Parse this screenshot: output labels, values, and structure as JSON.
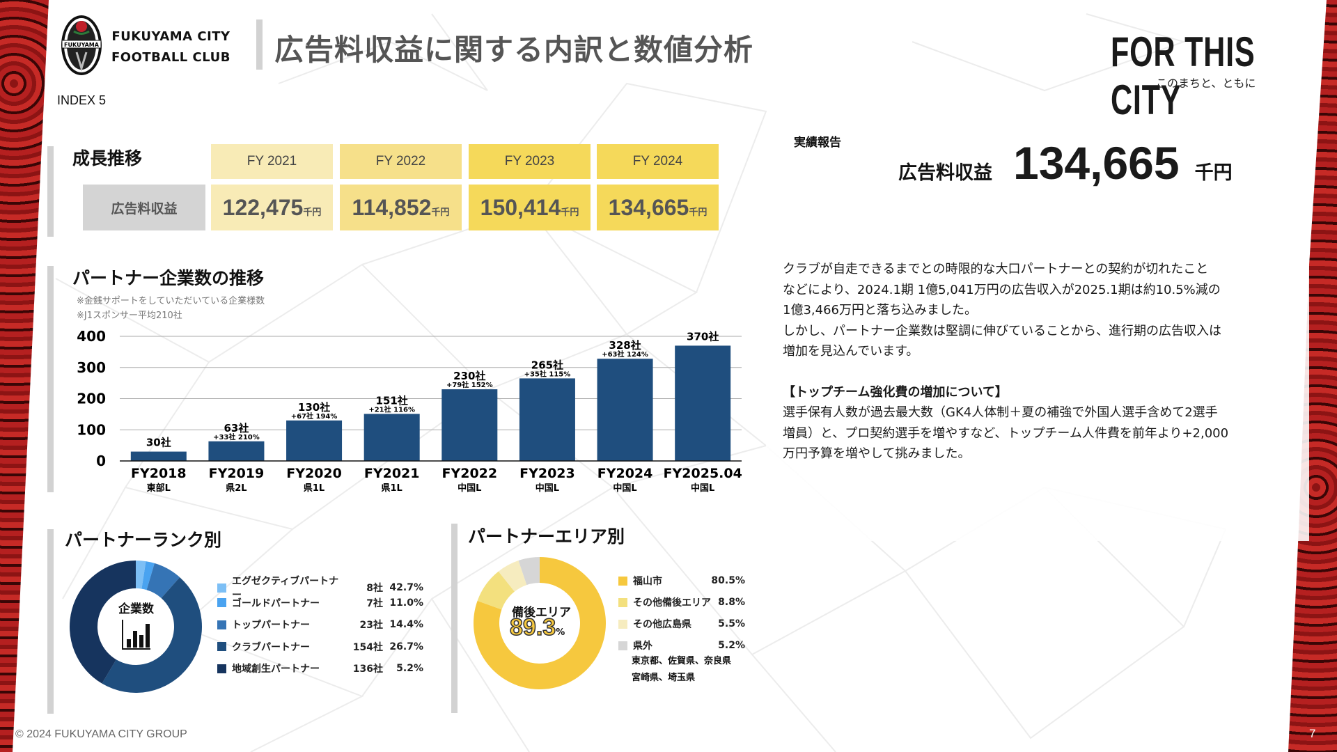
{
  "header": {
    "club_name_line1": "FUKUYAMA CITY",
    "club_name_line2": "FOOTBALL CLUB",
    "logo_banner": "FUKUYAMA",
    "index_label": "INDEX 5",
    "page_title": "広告料収益に関する内訳と数値分析",
    "tagline": "FOR THIS CITY",
    "tagline_sub": "このまちと、ともに"
  },
  "growth": {
    "label": "成長推移",
    "row_header": "広告料収益",
    "unit": "千円",
    "years": [
      "FY 2021",
      "FY 2022",
      "FY 2023",
      "FY 2024"
    ],
    "values": [
      "122,475",
      "114,852",
      "150,414",
      "134,665"
    ],
    "colors": [
      "#f8ebb6",
      "#f6e08a",
      "#f5d95a",
      "#f5d95a"
    ]
  },
  "report": {
    "label": "実績報告",
    "metric_label": "広告料収益",
    "metric_value": "134,665",
    "metric_unit": "千円"
  },
  "commentary": {
    "para1": [
      "クラブが自走できるまでとの時限的な大口パートナーとの契約が切れたこと",
      "などにより、2024.1期 1億5,041万円の広告収入が2025.1期は約10.5%減の",
      "1億3,466万円と落ち込みました。",
      "しかし、パートナー企業数は堅調に伸びていることから、進行期の広告収入は",
      "増加を見込んでいます。"
    ],
    "heading2": "【トップチーム強化費の増加について】",
    "para2": [
      "選手保有人数が過去最大数（GK4人体制＋夏の補強で外国人選手含めて2選手",
      "増員）と、プロ契約選手を増やすなど、トップチーム人件費を前年より+2,000",
      "万円予算を増やして挑みました。"
    ]
  },
  "footer": {
    "copyright": "© 2024 FUKUYAMA CITY GROUP",
    "page_number": "7"
  },
  "chart_data": [
    {
      "type": "bar",
      "title": "パートナー企業数の推移",
      "notes": [
        "※金銭サポートをしていただいている企業様数",
        "※J1スポンサー平均210社"
      ],
      "categories": [
        "FY2018",
        "FY2019",
        "FY2020",
        "FY2021",
        "FY2022",
        "FY2023",
        "FY2024",
        "FY2025.04"
      ],
      "category_sublabels": [
        "東部L",
        "県2L",
        "県1L",
        "県1L",
        "中国L",
        "中国L",
        "中国L",
        "中国L"
      ],
      "values": [
        30,
        63,
        130,
        151,
        230,
        265,
        328,
        370
      ],
      "value_labels": [
        "30社",
        "63社",
        "130社",
        "151社",
        "230社",
        "265社",
        "328社",
        "370社"
      ],
      "growth_labels": [
        "",
        "+33社 210%",
        "+67社 194%",
        "+21社 116%",
        "+79社 152%",
        "+35社 115%",
        "+63社 124%",
        ""
      ],
      "yticks": [
        0,
        100,
        200,
        300,
        400
      ],
      "ylim": [
        0,
        400
      ],
      "grid": true,
      "color": "#1f4e7e",
      "xlabel": "",
      "ylabel": ""
    },
    {
      "type": "pie",
      "title": "パートナーランク別",
      "center_label": "企業数",
      "center_icon": "bar-chart-icon",
      "legend_placement": "right",
      "slices": [
        {
          "name": "エグゼクティブパートナー",
          "count": 8,
          "count_label": "8社",
          "percent_label": "42.7%",
          "color": "#7dbff5"
        },
        {
          "name": "ゴールドパートナー",
          "count": 7,
          "count_label": "7社",
          "percent_label": "11.0%",
          "color": "#4aa3f0"
        },
        {
          "name": "トップパートナー",
          "count": 23,
          "count_label": "23社",
          "percent_label": "14.4%",
          "color": "#3574b5"
        },
        {
          "name": "クラブパートナー",
          "count": 154,
          "count_label": "154社",
          "percent_label": "26.7%",
          "color": "#1f4e7e"
        },
        {
          "name": "地域創生パートナー",
          "count": 136,
          "count_label": "136社",
          "percent_label": "5.2%",
          "color": "#16345e"
        }
      ]
    },
    {
      "type": "pie",
      "title": "パートナーエリア別",
      "center_label": "備後エリア",
      "center_value": "89.3",
      "center_unit": "%",
      "legend_placement": "right",
      "slices": [
        {
          "name": "福山市",
          "value": 80.5,
          "percent_label": "80.5%",
          "color": "#f6c83e"
        },
        {
          "name": "その他備後エリア",
          "value": 8.8,
          "percent_label": "8.8%",
          "color": "#f3e07e"
        },
        {
          "name": "その他広島県",
          "value": 5.5,
          "percent_label": "5.5%",
          "color": "#f6ecbf"
        },
        {
          "name": "県外",
          "value": 5.2,
          "percent_label": "5.2%",
          "color": "#d6d6d6"
        }
      ],
      "outside_note": [
        "東京都、佐賀県、奈良県",
        "宮崎県、埼玉県"
      ]
    }
  ]
}
